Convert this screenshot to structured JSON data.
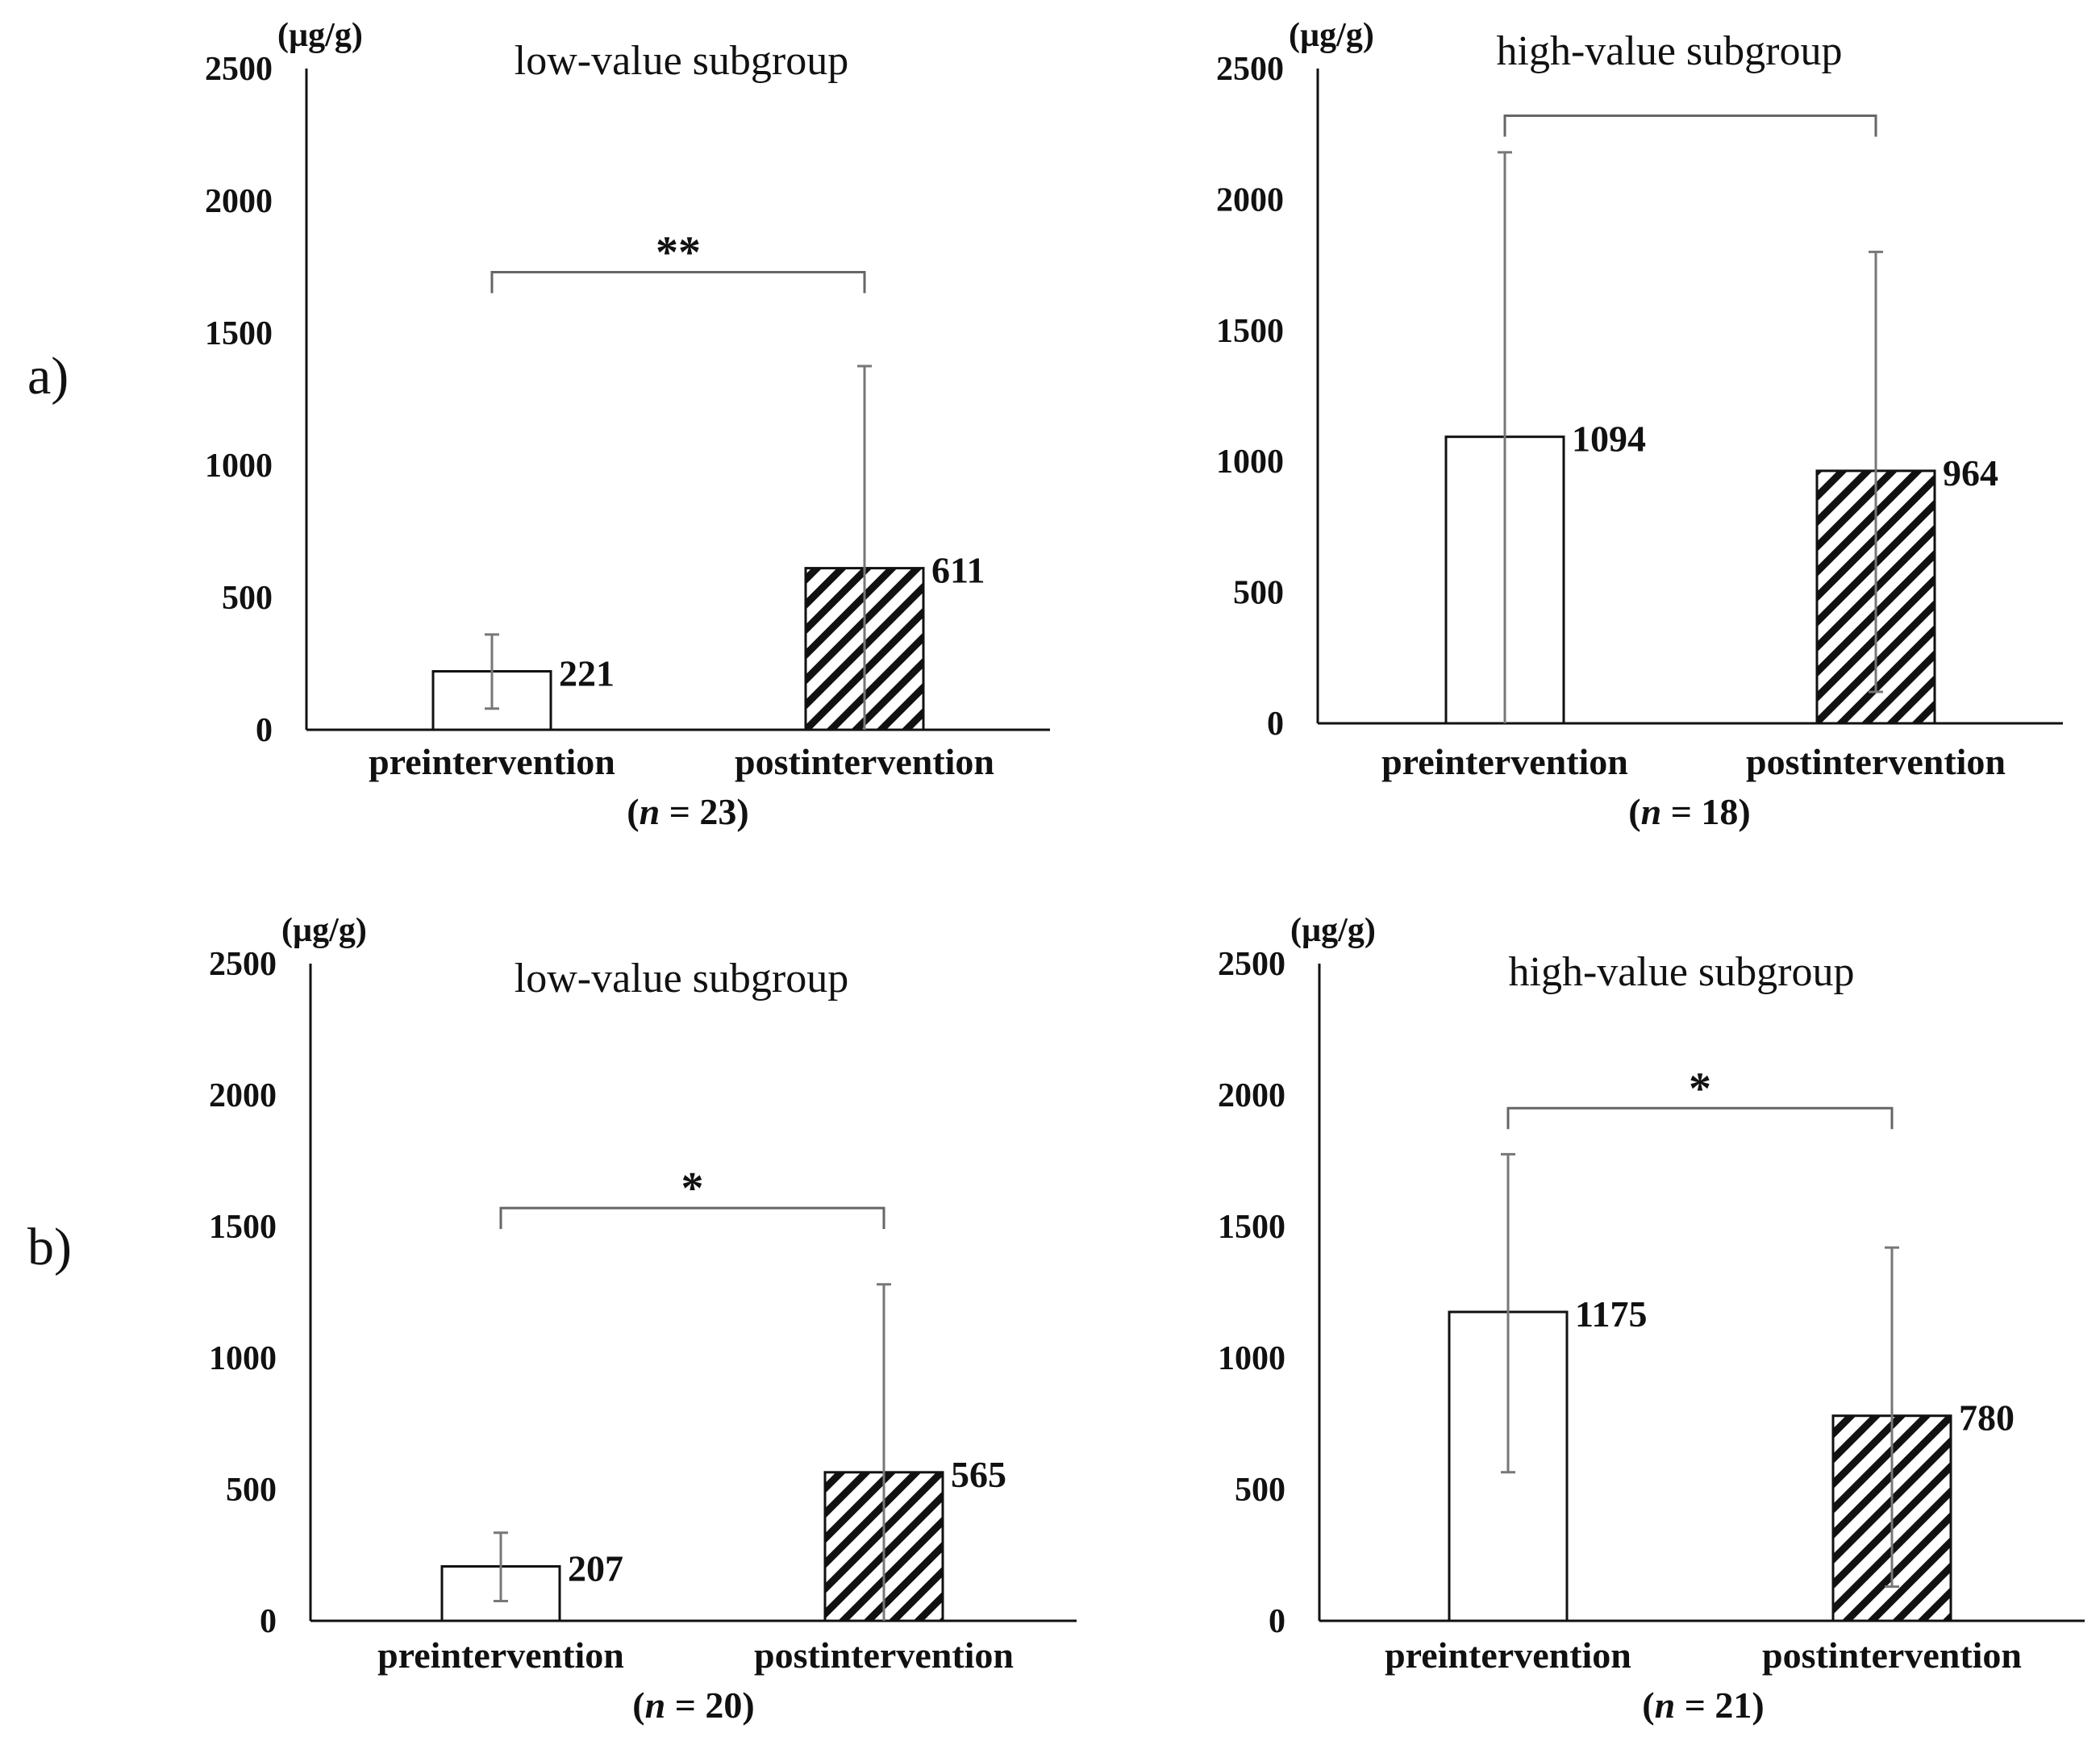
{
  "colors": {
    "axis": "#111111",
    "error_bar": "#777777",
    "bracket": "#666666",
    "bar_fill": "#ffffff",
    "hatch": "#111111"
  },
  "rows": [
    {
      "label": "a)"
    },
    {
      "label": "b)"
    }
  ],
  "chart_data": [
    {
      "type": "bar",
      "title": "low-value  subgroup",
      "unit": "(µg/g)",
      "ylim": [
        0,
        2500
      ],
      "yticks": [
        "0",
        "500",
        "1000",
        "1500",
        "2000",
        "2500"
      ],
      "categories": [
        "preintervention",
        "postintervention"
      ],
      "values": [
        221,
        611
      ],
      "value_labels": [
        "221",
        "611"
      ],
      "error_upper": [
        360,
        1375
      ],
      "error_lower": [
        80,
        0
      ],
      "n_label": "(n = 23)",
      "significance": "**",
      "bracket_y": 1730
    },
    {
      "type": "bar",
      "title": "high-value  subgroup",
      "unit": "(µg/g)",
      "ylim": [
        0,
        2500
      ],
      "yticks": [
        "0",
        "500",
        "1000",
        "1500",
        "2000",
        "2500"
      ],
      "categories": [
        "preintervention",
        "postintervention"
      ],
      "values": [
        1094,
        964
      ],
      "value_labels": [
        "1094",
        "964"
      ],
      "error_upper": [
        2180,
        1800
      ],
      "error_lower": [
        0,
        120
      ],
      "n_label": "(n = 18)",
      "significance": "",
      "bracket_y": 2320
    },
    {
      "type": "bar",
      "title": "low-value  subgroup",
      "unit": "(µg/g)",
      "ylim": [
        0,
        2500
      ],
      "yticks": [
        "0",
        "500",
        "1000",
        "1500",
        "2000",
        "2500"
      ],
      "categories": [
        "preintervention",
        "postintervention"
      ],
      "values": [
        207,
        565
      ],
      "value_labels": [
        "207",
        "565"
      ],
      "error_upper": [
        335,
        1280
      ],
      "error_lower": [
        75,
        0
      ],
      "n_label": "(n = 20)",
      "significance": "*",
      "bracket_y": 1570
    },
    {
      "type": "bar",
      "title": "high-value  subgroup",
      "unit": "(µg/g)",
      "ylim": [
        0,
        2500
      ],
      "yticks": [
        "0",
        "500",
        "1000",
        "1500",
        "2000",
        "2500"
      ],
      "categories": [
        "preintervention",
        "postintervention"
      ],
      "values": [
        1175,
        780
      ],
      "value_labels": [
        "1175",
        "780"
      ],
      "error_upper": [
        1775,
        1420
      ],
      "error_lower": [
        565,
        130
      ],
      "n_label": "(n = 21)",
      "significance": "*",
      "bracket_y": 1950
    }
  ]
}
